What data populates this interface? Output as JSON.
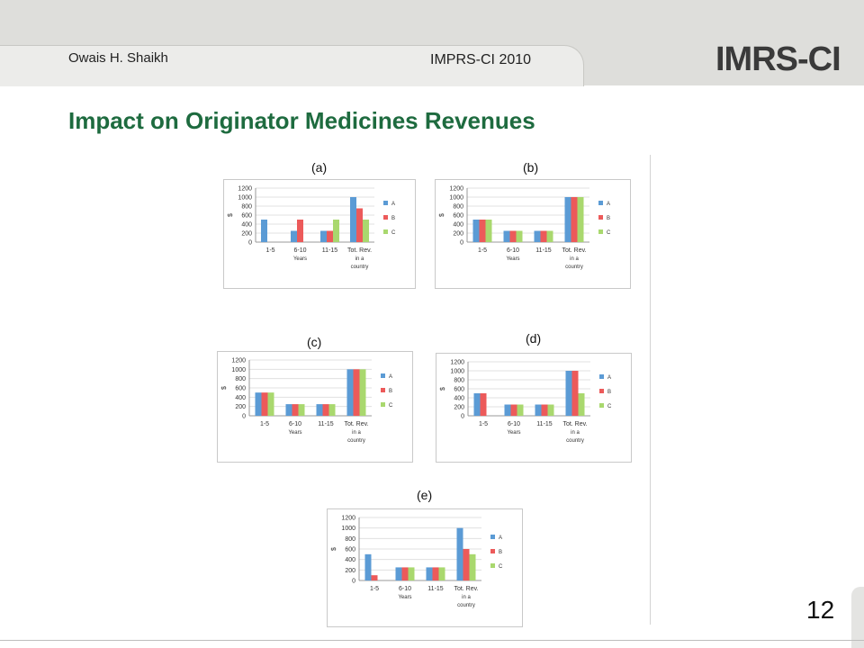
{
  "header": {
    "author": "Owais H. Shaikh",
    "conference": "IMPRS-CI 2010",
    "logo": "IMRS-CI"
  },
  "slide": {
    "title": "Impact on Originator Medicines Revenues",
    "page_number": "12"
  },
  "colors": {
    "A": "#5b9bd5",
    "B": "#ec5a5a",
    "C": "#a9d86e",
    "title": "#1e6b3f"
  },
  "chart_data": [
    {
      "type": "bar",
      "panel": "(a)",
      "categories": [
        "1-5",
        "6-10",
        "11-15",
        "Tot. Rev. in a country"
      ],
      "xlabel": "Years",
      "ylabel": "$",
      "ylim": [
        0,
        1200
      ],
      "yticks": [
        "0",
        "200",
        "400",
        "600",
        "800",
        "1000",
        "1200"
      ],
      "series": [
        {
          "name": "A",
          "values": [
            500,
            250,
            250,
            1000
          ]
        },
        {
          "name": "B",
          "values": [
            0,
            500,
            250,
            750
          ]
        },
        {
          "name": "C",
          "values": [
            0,
            0,
            500,
            500
          ]
        }
      ]
    },
    {
      "type": "bar",
      "panel": "(b)",
      "categories": [
        "1-5",
        "6-10",
        "11-15",
        "Tot. Rev. in a country"
      ],
      "xlabel": "Years",
      "ylabel": "$",
      "ylim": [
        0,
        1200
      ],
      "yticks": [
        "0",
        "200",
        "400",
        "600",
        "800",
        "1000",
        "1200"
      ],
      "series": [
        {
          "name": "A",
          "values": [
            500,
            250,
            250,
            1000
          ]
        },
        {
          "name": "B",
          "values": [
            500,
            250,
            250,
            1000
          ]
        },
        {
          "name": "C",
          "values": [
            500,
            250,
            250,
            1000
          ]
        }
      ]
    },
    {
      "type": "bar",
      "panel": "(c)",
      "categories": [
        "1-5",
        "6-10",
        "11-15",
        "Tot. Rev. in a country"
      ],
      "xlabel": "Years",
      "ylabel": "$",
      "ylim": [
        0,
        1200
      ],
      "yticks": [
        "0",
        "200",
        "400",
        "600",
        "800",
        "1000",
        "1200"
      ],
      "series": [
        {
          "name": "A",
          "values": [
            500,
            250,
            250,
            1000
          ]
        },
        {
          "name": "B",
          "values": [
            500,
            250,
            250,
            1000
          ]
        },
        {
          "name": "C",
          "values": [
            500,
            250,
            250,
            1000
          ]
        }
      ]
    },
    {
      "type": "bar",
      "panel": "(d)",
      "categories": [
        "1-5",
        "6-10",
        "11-15",
        "Tot. Rev. in a country"
      ],
      "xlabel": "Years",
      "ylabel": "$",
      "ylim": [
        0,
        1200
      ],
      "yticks": [
        "0",
        "200",
        "400",
        "600",
        "800",
        "1000",
        "1200"
      ],
      "series": [
        {
          "name": "A",
          "values": [
            500,
            250,
            250,
            1000
          ]
        },
        {
          "name": "B",
          "values": [
            500,
            250,
            250,
            1000
          ]
        },
        {
          "name": "C",
          "values": [
            0,
            250,
            250,
            500
          ]
        }
      ]
    },
    {
      "type": "bar",
      "panel": "(e)",
      "categories": [
        "1-5",
        "6-10",
        "11-15",
        "Tot. Rev. in a country"
      ],
      "xlabel": "Years",
      "ylabel": "$",
      "ylim": [
        0,
        1200
      ],
      "yticks": [
        "0",
        "200",
        "400",
        "600",
        "800",
        "1000",
        "1200"
      ],
      "series": [
        {
          "name": "A",
          "values": [
            500,
            250,
            250,
            1000
          ]
        },
        {
          "name": "B",
          "values": [
            100,
            250,
            250,
            600
          ]
        },
        {
          "name": "C",
          "values": [
            0,
            250,
            250,
            500
          ]
        }
      ]
    }
  ]
}
